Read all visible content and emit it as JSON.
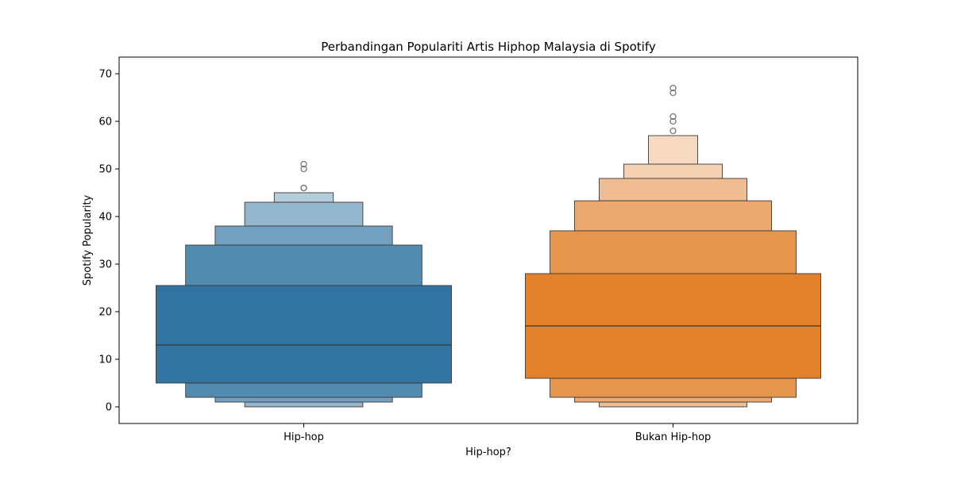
{
  "chart_data": {
    "type": "boxen",
    "title": "Perbandingan Populariti Artis Hiphop Malaysia di Spotify",
    "xlabel": "Hip-hop?",
    "ylabel": "Spotify Popularity",
    "ylim": [
      -3.5,
      73.5
    ],
    "yticks": [
      0,
      10,
      20,
      30,
      40,
      50,
      60,
      70
    ],
    "grid": false,
    "categories": [
      "Hip-hop",
      "Bukan Hip-hop"
    ],
    "series": [
      {
        "category": "Hip-hop",
        "color": "#3274a1",
        "median": 13,
        "levels": [
          {
            "low": 5,
            "high": 25.5
          },
          {
            "low": 2,
            "high": 34
          },
          {
            "low": 1,
            "high": 38
          },
          {
            "low": 0,
            "high": 43
          },
          {
            "low": null,
            "high": 45
          }
        ],
        "outliers": [
          46,
          46,
          50,
          51
        ]
      },
      {
        "category": "Bukan Hip-hop",
        "color": "#e1812c",
        "median": 17,
        "levels": [
          {
            "low": 6,
            "high": 28
          },
          {
            "low": 2,
            "high": 37
          },
          {
            "low": 1,
            "high": 43.3
          },
          {
            "low": 0,
            "high": 48
          },
          {
            "low": null,
            "high": 51
          },
          {
            "low": null,
            "high": 57
          }
        ],
        "outliers": [
          58,
          60,
          61,
          66,
          67
        ]
      }
    ]
  }
}
